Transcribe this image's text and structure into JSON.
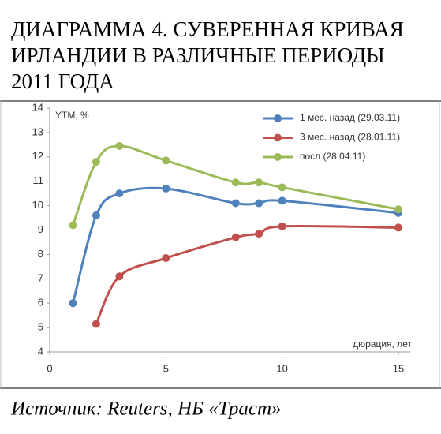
{
  "chart_data": {
    "type": "line",
    "title": [
      "ДИАГРАММА 4. СУВЕРЕННАЯ КРИВАЯ",
      "ИРЛАНДИИ В РАЗЛИЧНЫЕ ПЕРИОДЫ",
      "2011 ГОДА"
    ],
    "y_label": "YTM, %",
    "x_label": "дюрация, лет",
    "source": "Источник: Reuters, НБ «Траст»",
    "x": [
      1,
      2,
      3,
      5,
      8,
      9,
      10,
      15
    ],
    "series": [
      {
        "name": "1 мес. назад (29.03.11)",
        "color": "#4f81bd",
        "values": [
          6.0,
          9.6,
          10.5,
          10.7,
          10.1,
          10.1,
          10.2,
          9.7
        ]
      },
      {
        "name": "3 мес. назад (28.01.11)",
        "color": "#c0504d",
        "values": [
          null,
          5.15,
          7.1,
          7.85,
          8.7,
          8.85,
          9.15,
          9.1
        ]
      },
      {
        "name": "посл (28.04.11)",
        "color": "#9bbb59",
        "values": [
          9.2,
          11.8,
          12.45,
          11.85,
          10.95,
          10.95,
          10.75,
          9.85
        ]
      }
    ],
    "xlim": [
      0,
      15
    ],
    "xticks": [
      0,
      5,
      10,
      15
    ],
    "ylim": [
      4,
      14
    ],
    "yticks": [
      4,
      5,
      6,
      7,
      8,
      9,
      10,
      11,
      12,
      13,
      14
    ],
    "legend": "top-right",
    "grid": false
  }
}
